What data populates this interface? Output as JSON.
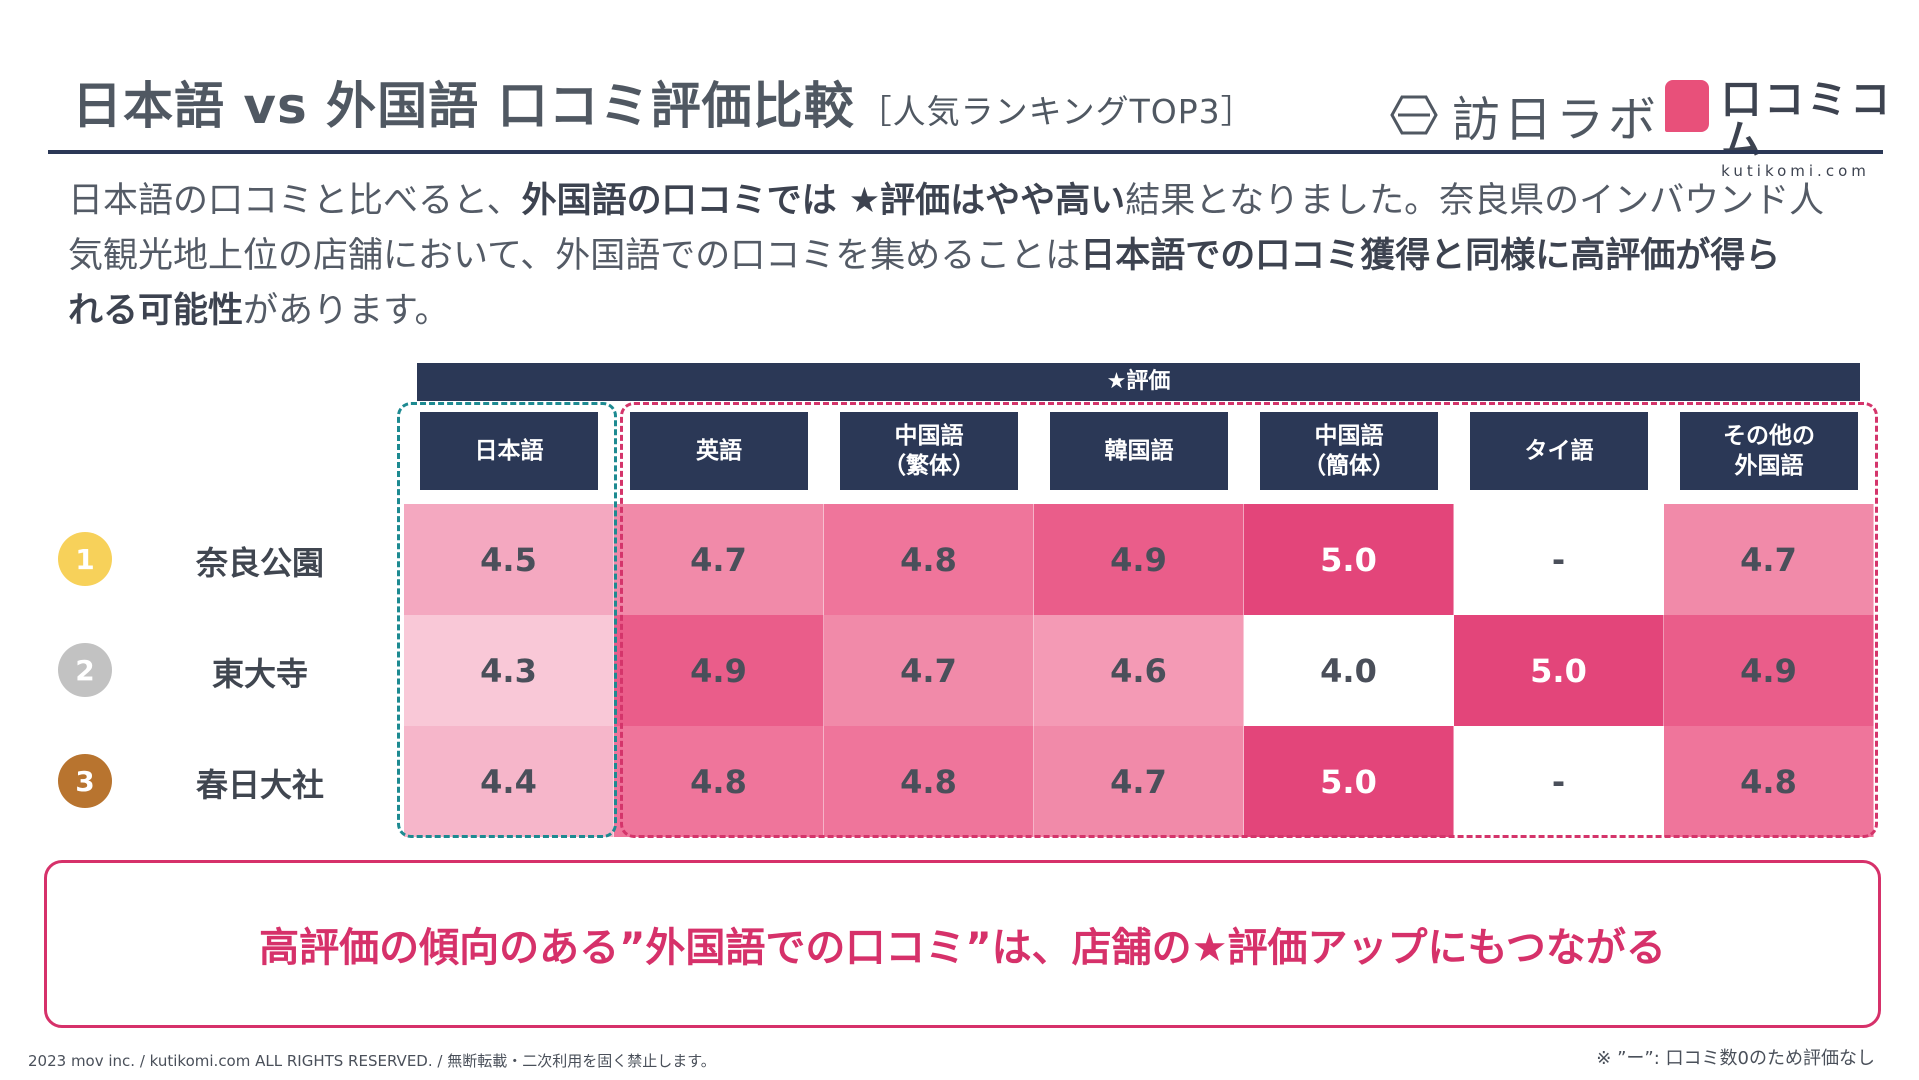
{
  "title": {
    "main": "日本語 vs 外国語 口コミ評価比較",
    "sub": "［人気ランキングTOP3］"
  },
  "logos": {
    "hounichi": "訪日ラボ",
    "kutikomi_jp": "口コミコム",
    "kutikomi_en": "kutikomi.com"
  },
  "intro": {
    "l1a": "日本語の口コミと比べると、",
    "l1b": "外国語の口コミでは ★評価はやや高い",
    "l1c": "結果となりました。奈良県のインバウンド人",
    "l2a": "気観光地上位の店舗において、外国語での口コミを集めることは",
    "l2b": "日本語での口コミ獲得と同様に高評価が得ら",
    "l3a": "れる可能性",
    "l3b": "があります。"
  },
  "table": {
    "group_header": "★評価",
    "columns": [
      "日本語",
      "英語",
      "中国語\n（繁体）",
      "韓国語",
      "中国語\n（簡体）",
      "タイ語",
      "その他の\n外国語"
    ],
    "rows": [
      {
        "rank": "1",
        "rank_color": "#f7d15a",
        "place": "奈良公園",
        "values": [
          "4.5",
          "4.7",
          "4.8",
          "4.9",
          "5.0",
          "-",
          "4.7"
        ]
      },
      {
        "rank": "2",
        "rank_color": "#c2c2c2",
        "place": "東大寺",
        "values": [
          "4.3",
          "4.9",
          "4.7",
          "4.6",
          "4.0",
          "5.0",
          "4.9"
        ]
      },
      {
        "rank": "3",
        "rank_color": "#b8742f",
        "place": "春日大社",
        "values": [
          "4.4",
          "4.8",
          "4.8",
          "4.7",
          "5.0",
          "-",
          "4.8"
        ]
      }
    ]
  },
  "colors": {
    "navy": "#2b3856",
    "cell_5_0": "#e3457a",
    "cell_4_9": "#ea5d8a",
    "cell_4_8": "#ef759b",
    "cell_4_7": "#f18aa9",
    "cell_4_6": "#f49ab5",
    "cell_4_5": "#f4a8c0",
    "cell_4_4": "#f6b6ca",
    "cell_4_3": "#f9c8d7",
    "cell_4_0": "#ffffff",
    "cell_none": "#ffffff"
  },
  "callout": "高評価の傾向のある”外国語での口コミ”は、店舗の★評価アップにもつながる",
  "footer": "2023 mov inc. / kutikomi.com ALL RIGHTS RESERVED. / 無断転載・二次利用を固く禁止します。",
  "note": "※ ”ー”: 口コミ数0のため評価なし"
}
